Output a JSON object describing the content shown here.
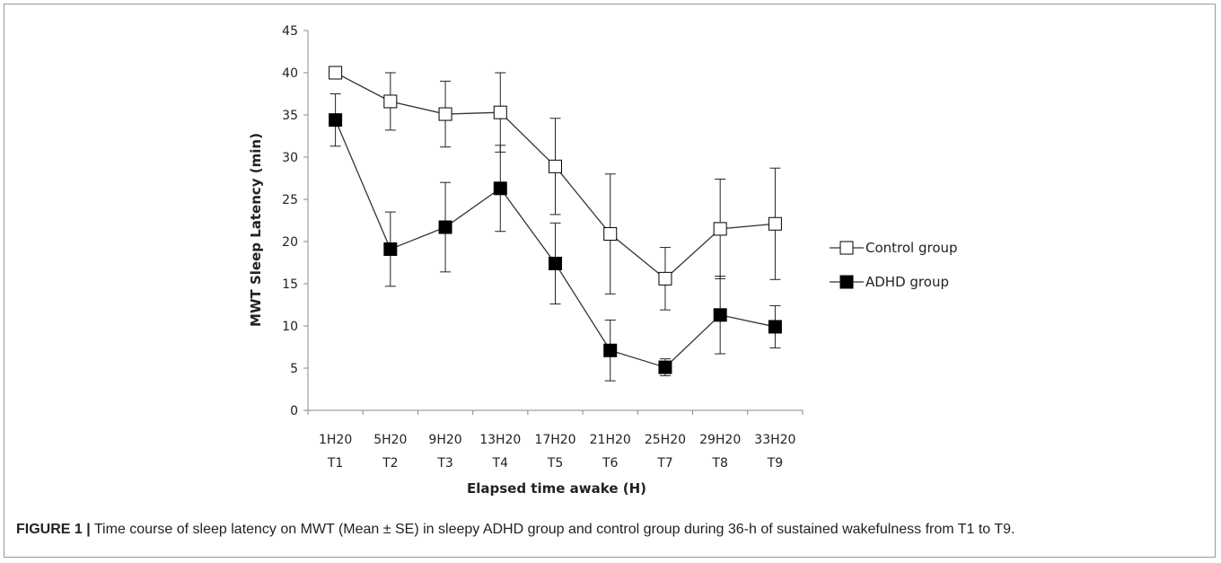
{
  "chart_data": {
    "type": "line",
    "categories": [
      [
        "1H20",
        "T1"
      ],
      [
        "5H20",
        "T2"
      ],
      [
        "9H20",
        "T3"
      ],
      [
        "13H20",
        "T4"
      ],
      [
        "17H20",
        "T5"
      ],
      [
        "21H20",
        "T6"
      ],
      [
        "25H20",
        "T7"
      ],
      [
        "29H20",
        "T8"
      ],
      [
        "33H20",
        "T9"
      ]
    ],
    "xlabel": "Elapsed time awake (H)",
    "ylabel": "MWT Sleep Latency (min)",
    "ylim": [
      0,
      45
    ],
    "yticks": [
      0,
      5,
      10,
      15,
      20,
      25,
      30,
      35,
      40,
      45
    ],
    "grid": false,
    "legend_position": "right",
    "series": [
      {
        "name": "Control group",
        "marker": "open-square",
        "color": "#333333",
        "values": [
          40,
          36.6,
          35.1,
          35.3,
          28.9,
          20.9,
          15.6,
          21.5,
          22.1
        ],
        "error": [
          0,
          3.4,
          3.9,
          4.7,
          5.7,
          7.1,
          3.7,
          5.9,
          6.6
        ]
      },
      {
        "name": "ADHD group",
        "marker": "filled-square",
        "color": "#000000",
        "values": [
          34.4,
          19.1,
          21.7,
          26.3,
          17.4,
          7.1,
          5.1,
          11.3,
          9.9
        ],
        "error": [
          3.1,
          4.4,
          5.3,
          5.1,
          4.8,
          3.6,
          1.0,
          4.6,
          2.5
        ]
      }
    ]
  },
  "caption": {
    "label": "FIGURE 1 |",
    "text": " Time course of sleep latency on MWT (Mean ± SE) in sleepy ADHD group and control group during 36-h of sustained wakefulness from T1 to T9."
  }
}
